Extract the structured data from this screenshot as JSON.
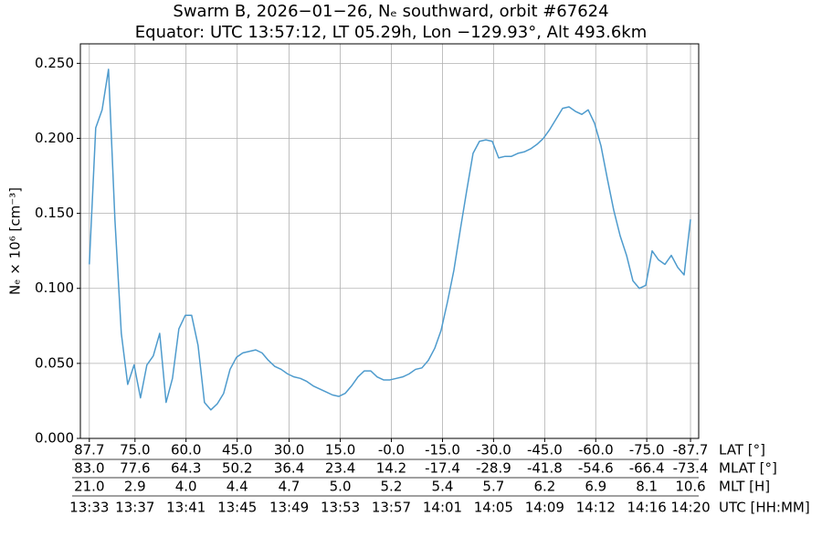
{
  "chart_data": {
    "type": "line",
    "title": "Swarm B, 2026−01−26, Nₑ southward, orbit #67624",
    "subtitle": "Equator: UTC 13:57:12, LT 05.29h, Lon −129.93°, Alt 493.6km",
    "ylabel": "Nₑ × 10⁶ [cm⁻³]",
    "xlabel": "UTC [HH:MM]",
    "color": "#4e9bcd",
    "grid": true,
    "xlim": [
      812.3,
      860.64
    ],
    "ylim": [
      0,
      0.263
    ],
    "yticks": [
      {
        "value": 0,
        "label": "0.000"
      },
      {
        "value": 0.05,
        "label": "0.050"
      },
      {
        "value": 0.1,
        "label": "0.100"
      },
      {
        "value": 0.15,
        "label": "0.150"
      },
      {
        "value": 0.2,
        "label": "0.200"
      },
      {
        "value": 0.25,
        "label": "0.250"
      }
    ],
    "xticks": [
      {
        "value": 813,
        "label": "13:33"
      },
      {
        "value": 816.57,
        "label": "13:37"
      },
      {
        "value": 820.56,
        "label": "13:41"
      },
      {
        "value": 824.56,
        "label": "13:45"
      },
      {
        "value": 828.62,
        "label": "13:49"
      },
      {
        "value": 832.62,
        "label": "13:53"
      },
      {
        "value": 836.61,
        "label": "13:57"
      },
      {
        "value": 840.61,
        "label": "14:01"
      },
      {
        "value": 844.6,
        "label": "14:05"
      },
      {
        "value": 848.6,
        "label": "14:09"
      },
      {
        "value": 852.59,
        "label": "14:12"
      },
      {
        "value": 856.58,
        "label": "14:16"
      },
      {
        "value": 860,
        "label": "14:20"
      }
    ],
    "tick_rows": [
      {
        "label": "LAT [°]",
        "ticks": [
          "87.7",
          "75.0",
          "60.0",
          "45.0",
          "30.0",
          "15.0",
          "-0.0",
          "-15.0",
          "-30.0",
          "-45.0",
          "-60.0",
          "-75.0",
          "-87.7"
        ]
      },
      {
        "label": "MLAT [°]",
        "ticks": [
          "83.0",
          "77.6",
          "64.3",
          "50.2",
          "36.4",
          "23.4",
          "14.2",
          "-17.4",
          "-28.9",
          "-41.8",
          "-54.6",
          "-66.4",
          "-73.4"
        ]
      },
      {
        "label": "MLT [H]",
        "ticks": [
          "21.0",
          "2.9",
          "4.0",
          "4.4",
          "4.7",
          "5.0",
          "5.2",
          "5.4",
          "5.7",
          "6.2",
          "6.9",
          "8.1",
          "10.6"
        ]
      }
    ],
    "x": [
      813,
      813.5,
      814,
      814.5,
      815,
      815.5,
      816,
      816.5,
      817,
      817.5,
      818,
      818.5,
      819,
      819.5,
      820,
      820.5,
      821,
      821.5,
      822,
      822.5,
      823,
      823.5,
      824,
      824.5,
      825,
      825.5,
      826,
      826.5,
      827,
      827.5,
      828,
      828.5,
      829,
      829.5,
      830,
      830.5,
      831,
      831.5,
      832,
      832.5,
      833,
      833.5,
      834,
      834.5,
      835,
      835.5,
      836,
      836.5,
      837,
      837.5,
      838,
      838.5,
      839,
      839.5,
      840,
      840.5,
      841,
      841.5,
      842,
      842.5,
      843,
      843.5,
      844,
      844.5,
      845,
      845.5,
      846,
      846.5,
      847,
      847.5,
      848,
      848.5,
      849,
      849.5,
      850,
      850.5,
      851,
      851.5,
      852,
      852.5,
      853,
      853.5,
      854,
      854.5,
      855,
      855.5,
      856,
      856.5,
      857,
      857.5,
      858,
      858.5,
      859,
      859.5,
      860
    ],
    "values": [
      0.116,
      0.207,
      0.219,
      0.246,
      0.146,
      0.07,
      0.036,
      0.049,
      0.027,
      0.049,
      0.055,
      0.07,
      0.024,
      0.04,
      0.073,
      0.082,
      0.082,
      0.062,
      0.024,
      0.019,
      0.023,
      0.03,
      0.046,
      0.054,
      0.057,
      0.058,
      0.059,
      0.057,
      0.052,
      0.048,
      0.046,
      0.043,
      0.041,
      0.04,
      0.038,
      0.035,
      0.033,
      0.031,
      0.029,
      0.028,
      0.03,
      0.035,
      0.041,
      0.045,
      0.045,
      0.041,
      0.039,
      0.039,
      0.04,
      0.041,
      0.043,
      0.046,
      0.047,
      0.052,
      0.06,
      0.072,
      0.091,
      0.112,
      0.139,
      0.165,
      0.19,
      0.198,
      0.199,
      0.198,
      0.187,
      0.188,
      0.188,
      0.19,
      0.191,
      0.193,
      0.196,
      0.2,
      0.206,
      0.213,
      0.22,
      0.221,
      0.218,
      0.216,
      0.219,
      0.21,
      0.195,
      0.173,
      0.152,
      0.135,
      0.122,
      0.105,
      0.1,
      0.102,
      0.125,
      0.119,
      0.116,
      0.122,
      0.114,
      0.109,
      0.146
    ]
  }
}
